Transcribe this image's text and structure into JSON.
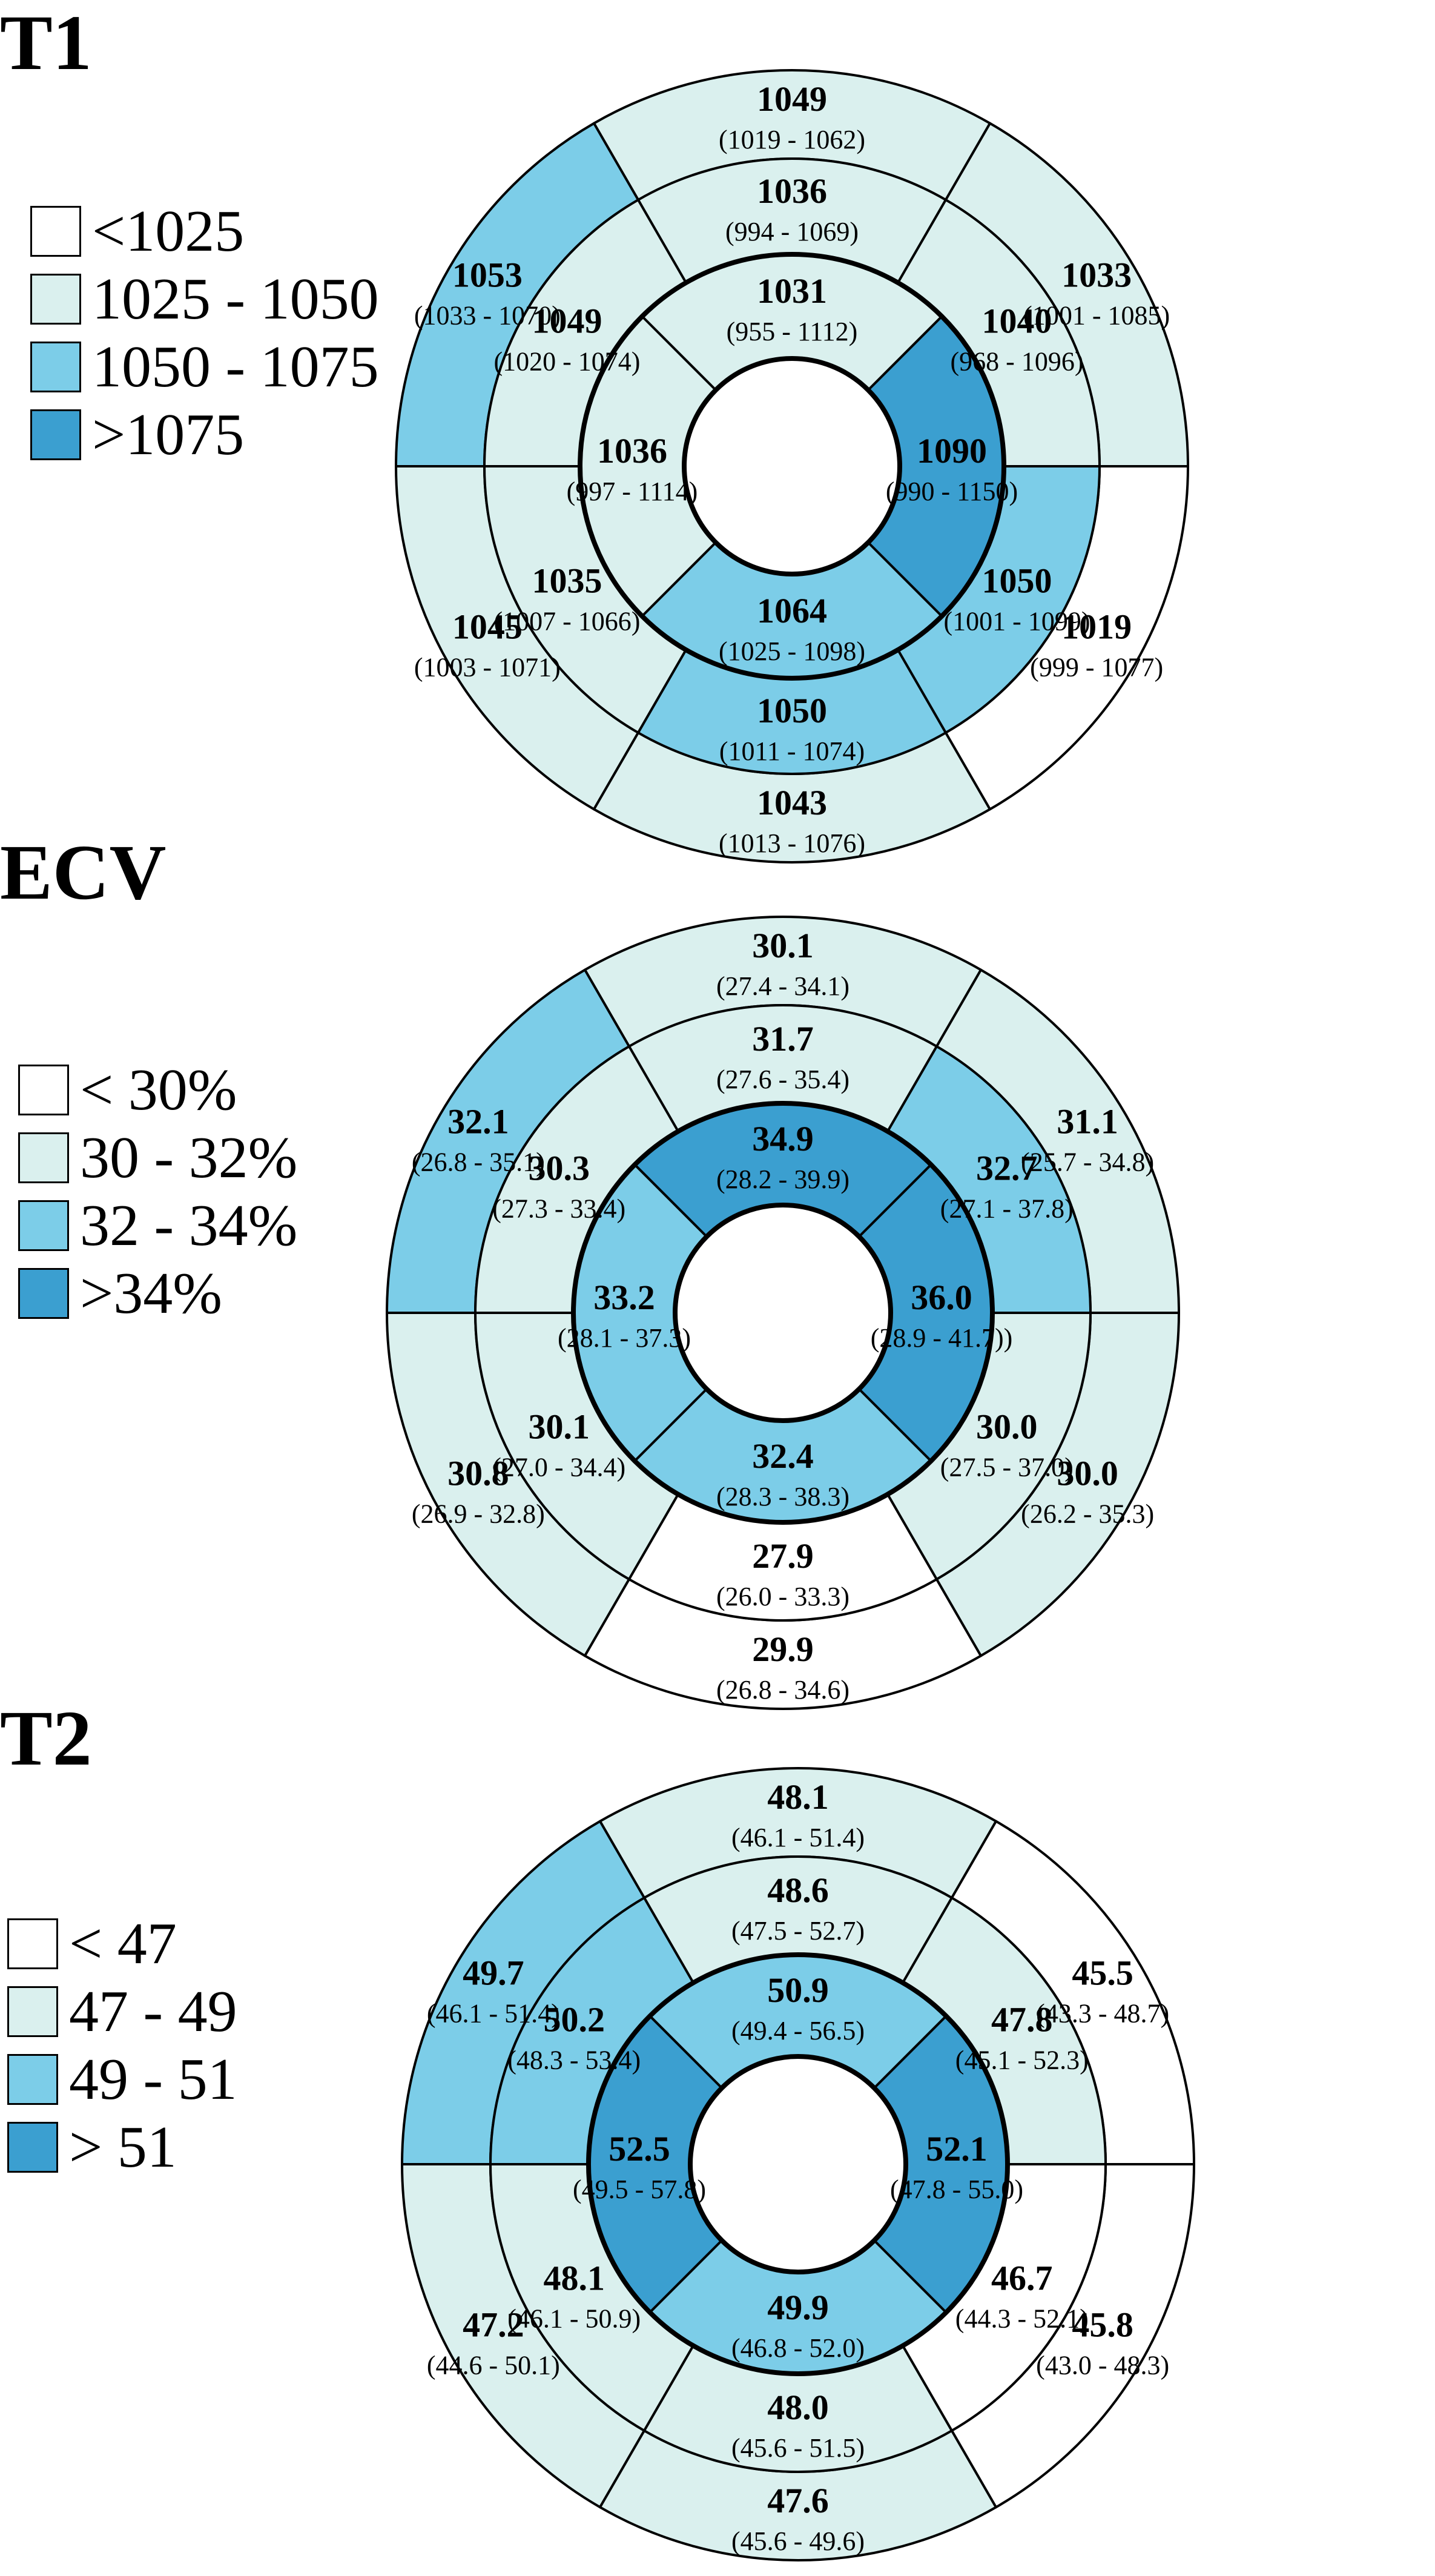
{
  "colors": {
    "c0": "#ffffff",
    "c1": "#daf0ee",
    "c2": "#7ccde8",
    "c3": "#3b9fd0"
  },
  "panels": [
    {
      "title": "T1",
      "legend": [
        {
          "label": "<1025",
          "level": 0
        },
        {
          "label": "1025 - 1050",
          "level": 1
        },
        {
          "label": "1050 - 1075",
          "level": 2
        },
        {
          "label": ">1075",
          "level": 3
        }
      ],
      "segments": [
        {
          "segment": 1,
          "value": "1049",
          "range": "(1019 - 1062)",
          "level": 1
        },
        {
          "segment": 2,
          "value": "1053",
          "range": "(1033 - 1070)",
          "level": 2
        },
        {
          "segment": 3,
          "value": "1045",
          "range": "(1003 - 1071)",
          "level": 1
        },
        {
          "segment": 4,
          "value": "1043",
          "range": "(1013 - 1076)",
          "level": 1
        },
        {
          "segment": 5,
          "value": "1019",
          "range": "(999 - 1077)",
          "level": 0
        },
        {
          "segment": 6,
          "value": "1033",
          "range": "(1001 - 1085)",
          "level": 1
        },
        {
          "segment": 7,
          "value": "1036",
          "range": "(994 - 1069)",
          "level": 1
        },
        {
          "segment": 8,
          "value": "1049",
          "range": "(1020 - 1074)",
          "level": 1
        },
        {
          "segment": 9,
          "value": "1035",
          "range": "(1007 - 1066)",
          "level": 1
        },
        {
          "segment": 10,
          "value": "1050",
          "range": "(1011 - 1074)",
          "level": 2
        },
        {
          "segment": 11,
          "value": "1050",
          "range": "(1001 - 1099)",
          "level": 2
        },
        {
          "segment": 12,
          "value": "1040",
          "range": "(968 - 1096)",
          "level": 1
        },
        {
          "segment": 13,
          "value": "1031",
          "range": "(955 - 1112)",
          "level": 1
        },
        {
          "segment": 14,
          "value": "1036",
          "range": "(997 - 1114)",
          "level": 1
        },
        {
          "segment": 15,
          "value": "1064",
          "range": "(1025 - 1098)",
          "level": 2
        },
        {
          "segment": 16,
          "value": "1090",
          "range": "(990 - 1150)",
          "level": 3
        }
      ]
    },
    {
      "title": "ECV",
      "legend": [
        {
          "label": "< 30%",
          "level": 0
        },
        {
          "label": "30 - 32%",
          "level": 1
        },
        {
          "label": "32 - 34%",
          "level": 2
        },
        {
          "label": ">34%",
          "level": 3
        }
      ],
      "segments": [
        {
          "segment": 1,
          "value": "30.1",
          "range": "(27.4 - 34.1)",
          "level": 1
        },
        {
          "segment": 2,
          "value": "32.1",
          "range": "(26.8 - 35.1)",
          "level": 2
        },
        {
          "segment": 3,
          "value": "30.8",
          "range": "(26.9 - 32.8)",
          "level": 1
        },
        {
          "segment": 4,
          "value": "29.9",
          "range": "(26.8 - 34.6)",
          "level": 0
        },
        {
          "segment": 5,
          "value": "30.0",
          "range": "(26.2 - 35.3)",
          "level": 1
        },
        {
          "segment": 6,
          "value": "31.1",
          "range": "(25.7 - 34.8)",
          "level": 1
        },
        {
          "segment": 7,
          "value": "31.7",
          "range": "(27.6 - 35.4)",
          "level": 1
        },
        {
          "segment": 8,
          "value": "30.3",
          "range": "(27.3 - 33.4)",
          "level": 1
        },
        {
          "segment": 9,
          "value": "30.1",
          "range": "(27.0 - 34.4)",
          "level": 1
        },
        {
          "segment": 10,
          "value": "27.9",
          "range": "(26.0 - 33.3)",
          "level": 0
        },
        {
          "segment": 11,
          "value": "30.0",
          "range": "(27.5 - 37.0)",
          "level": 1
        },
        {
          "segment": 12,
          "value": "32.7",
          "range": "(27.1 - 37.8)",
          "level": 2
        },
        {
          "segment": 13,
          "value": "34.9",
          "range": "(28.2 - 39.9)",
          "level": 3
        },
        {
          "segment": 14,
          "value": "33.2",
          "range": "(28.1 - 37.3)",
          "level": 2
        },
        {
          "segment": 15,
          "value": "32.4",
          "range": "(28.3 - 38.3)",
          "level": 2
        },
        {
          "segment": 16,
          "value": "36.0",
          "range": "(28.9 - 41.7))",
          "level": 3
        }
      ]
    },
    {
      "title": "T2",
      "legend": [
        {
          "label": "< 47",
          "level": 0
        },
        {
          "label": "47 - 49",
          "level": 1
        },
        {
          "label": "49 - 51",
          "level": 2
        },
        {
          "label": "> 51",
          "level": 3
        }
      ],
      "segments": [
        {
          "segment": 1,
          "value": "48.1",
          "range": "(46.1 - 51.4)",
          "level": 1
        },
        {
          "segment": 2,
          "value": "49.7",
          "range": "(46.1 - 51.4)",
          "level": 2
        },
        {
          "segment": 3,
          "value": "47.2",
          "range": "(44.6 - 50.1)",
          "level": 1
        },
        {
          "segment": 4,
          "value": "47.6",
          "range": "(45.6 - 49.6)",
          "level": 1
        },
        {
          "segment": 5,
          "value": "45.8",
          "range": "(43.0 - 48.3)",
          "level": 0
        },
        {
          "segment": 6,
          "value": "45.5",
          "range": "(43.3 - 48.7)",
          "level": 0
        },
        {
          "segment": 7,
          "value": "48.6",
          "range": "(47.5 - 52.7)",
          "level": 1
        },
        {
          "segment": 8,
          "value": "50.2",
          "range": "(48.3 - 53.4)",
          "level": 2
        },
        {
          "segment": 9,
          "value": "48.1",
          "range": "(46.1 - 50.9)",
          "level": 1
        },
        {
          "segment": 10,
          "value": "48.0",
          "range": "(45.6 - 51.5)",
          "level": 1
        },
        {
          "segment": 11,
          "value": "46.7",
          "range": "(44.3 - 52.1)",
          "level": 0
        },
        {
          "segment": 12,
          "value": "47.8",
          "range": "(45.1 - 52.3)",
          "level": 1
        },
        {
          "segment": 13,
          "value": "50.9",
          "range": "(49.4 - 56.5)",
          "level": 2
        },
        {
          "segment": 14,
          "value": "52.5",
          "range": "(49.5 - 57.8)",
          "level": 3
        },
        {
          "segment": 15,
          "value": "49.9",
          "range": "(46.8 - 52.0)",
          "level": 2
        },
        {
          "segment": 16,
          "value": "52.1",
          "range": "(47.8 - 55.0)",
          "level": 3
        }
      ]
    }
  ]
}
